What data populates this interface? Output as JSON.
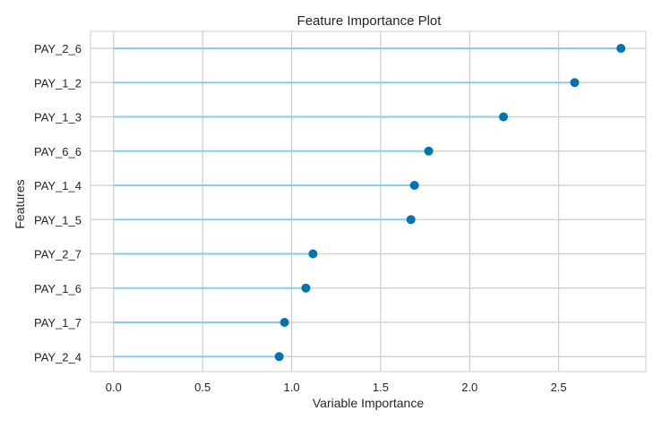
{
  "chart_data": {
    "type": "lollipop",
    "orientation": "horizontal",
    "title": "Feature Importance Plot",
    "xlabel": "Variable Importance",
    "ylabel": "Features",
    "categories": [
      "PAY_2_6",
      "PAY_1_2",
      "PAY_1_3",
      "PAY_6_6",
      "PAY_1_4",
      "PAY_1_5",
      "PAY_2_7",
      "PAY_1_6",
      "PAY_1_7",
      "PAY_2_4"
    ],
    "values": [
      2.85,
      2.59,
      2.19,
      1.77,
      1.69,
      1.67,
      1.12,
      1.08,
      0.96,
      0.93
    ],
    "xlim": [
      -0.13,
      2.99
    ],
    "xticks": [
      0.0,
      0.5,
      1.0,
      1.5,
      2.0,
      2.5
    ],
    "xtick_labels": [
      "0.0",
      "0.5",
      "1.0",
      "1.5",
      "2.0",
      "2.5"
    ],
    "grid": true,
    "colors": {
      "stem": "#87CEEB",
      "marker": "#0072B2",
      "grid": "#CCCCCC",
      "text": "#262626"
    }
  }
}
